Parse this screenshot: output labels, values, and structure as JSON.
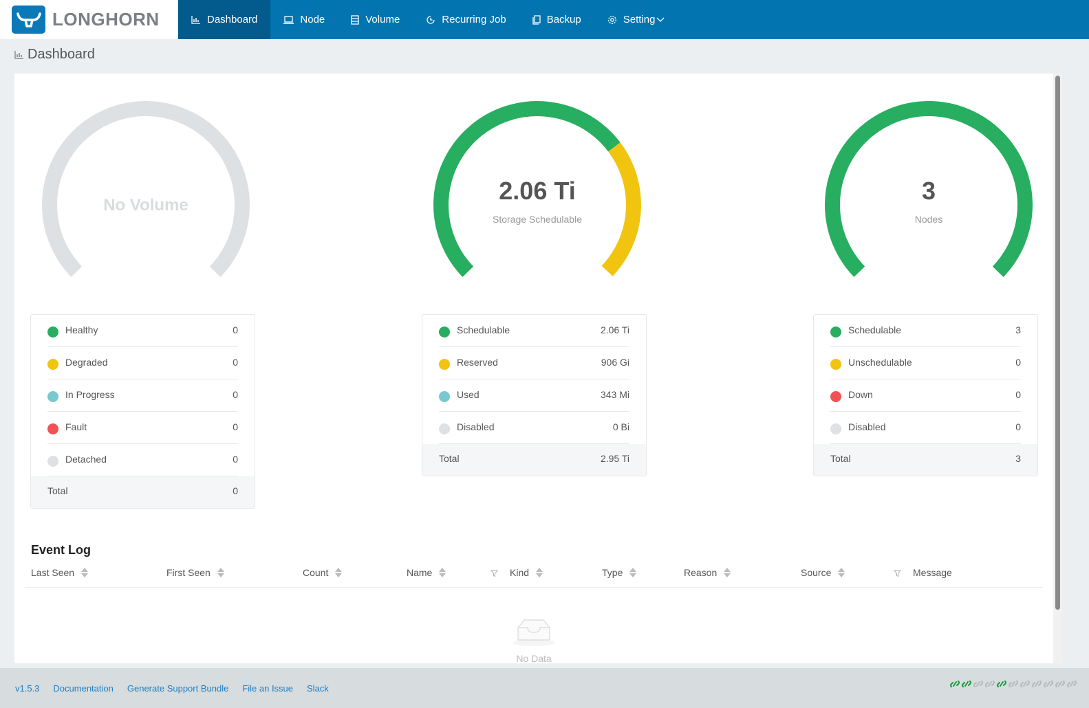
{
  "brand": {
    "name": "LONGHORN"
  },
  "nav": {
    "items": [
      {
        "label": "Dashboard",
        "icon": "bar-chart-icon"
      },
      {
        "label": "Node",
        "icon": "laptop-icon"
      },
      {
        "label": "Volume",
        "icon": "database-icon"
      },
      {
        "label": "Recurring Job",
        "icon": "clock-icon"
      },
      {
        "label": "Backup",
        "icon": "copy-icon"
      },
      {
        "label": "Setting",
        "icon": "gear-icon"
      }
    ],
    "active": "Dashboard"
  },
  "page_title": "Dashboard",
  "gauges": {
    "volume": {
      "empty_text": "No Volume"
    },
    "storage": {
      "value": "2.06 Ti",
      "label": "Storage Schedulable",
      "schedulable_fraction": 0.698,
      "reserved_fraction": 0.3
    },
    "nodes": {
      "value": "3",
      "label": "Nodes",
      "schedulable_fraction": 1.0
    }
  },
  "volume_legend": {
    "rows": [
      {
        "label": "Healthy",
        "value": "0",
        "color": "#27ae60"
      },
      {
        "label": "Degraded",
        "value": "0",
        "color": "#f1c40f"
      },
      {
        "label": "In Progress",
        "value": "0",
        "color": "#78c8cf"
      },
      {
        "label": "Fault",
        "value": "0",
        "color": "#f15354"
      },
      {
        "label": "Detached",
        "value": "0",
        "color": "#dee1e3"
      }
    ],
    "total_label": "Total",
    "total_value": "0"
  },
  "storage_legend": {
    "rows": [
      {
        "label": "Schedulable",
        "value": "2.06 Ti",
        "color": "#27ae60"
      },
      {
        "label": "Reserved",
        "value": "906 Gi",
        "color": "#f1c40f"
      },
      {
        "label": "Used",
        "value": "343 Mi",
        "color": "#78c8cf"
      },
      {
        "label": "Disabled",
        "value": "0 Bi",
        "color": "#dee1e3"
      }
    ],
    "total_label": "Total",
    "total_value": "2.95 Ti"
  },
  "node_legend": {
    "rows": [
      {
        "label": "Schedulable",
        "value": "3",
        "color": "#27ae60"
      },
      {
        "label": "Unschedulable",
        "value": "0",
        "color": "#f1c40f"
      },
      {
        "label": "Down",
        "value": "0",
        "color": "#f15354"
      },
      {
        "label": "Disabled",
        "value": "0",
        "color": "#dee1e3"
      }
    ],
    "total_label": "Total",
    "total_value": "3"
  },
  "event_log": {
    "title": "Event Log",
    "columns": [
      "Last Seen",
      "First Seen",
      "Count",
      "Name",
      "Kind",
      "Type",
      "Reason",
      "Source",
      "Message"
    ],
    "empty_text": "No Data"
  },
  "footer": {
    "version": "v1.5.3",
    "links": [
      "Documentation",
      "Generate Support Bundle",
      "File an Issue",
      "Slack"
    ]
  },
  "colors": {
    "primary": "#0275b0",
    "nav_active": "#035a8c",
    "green": "#27ae60",
    "yellow": "#f1c40f",
    "gray": "#dee1e3"
  }
}
